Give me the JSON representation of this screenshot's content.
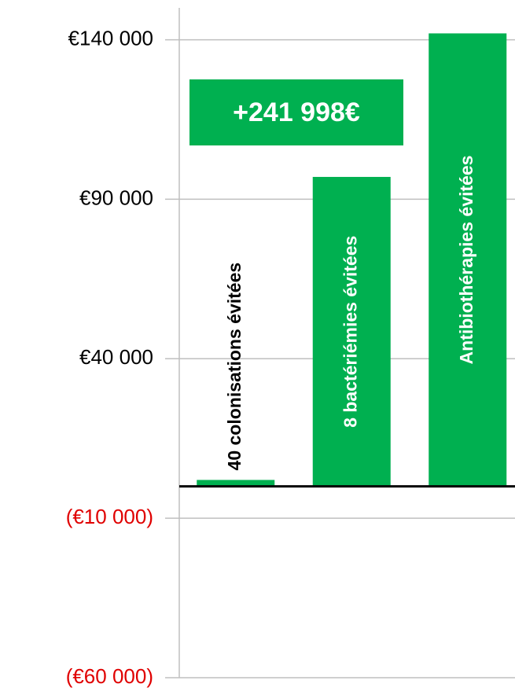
{
  "chart_data": {
    "type": "bar",
    "categories": [
      "40 colonisations évitées",
      "8 bactériémies évitées",
      "Antibiothérapies évitées"
    ],
    "values": [
      2000,
      97000,
      142000
    ],
    "color": "#00b050",
    "ylim": [
      -60000,
      150000
    ],
    "yticks": [
      {
        "value": -60000,
        "label": "(€60 000)"
      },
      {
        "value": -10000,
        "label": "(€10 000)"
      },
      {
        "value": 40000,
        "label": "€40 000"
      },
      {
        "value": 90000,
        "label": "€90 000"
      },
      {
        "value": 140000,
        "label": "€140 000"
      }
    ],
    "negative_tick_color": "#e00000",
    "grid": true,
    "annotation": "+241 998€"
  }
}
